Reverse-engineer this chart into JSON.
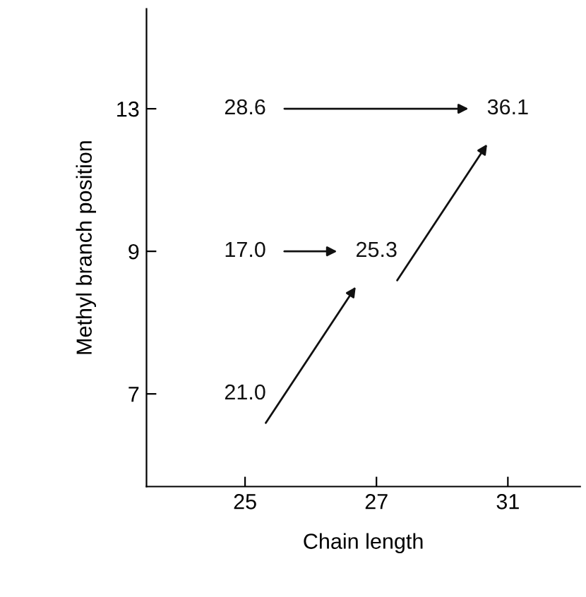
{
  "chart_data": {
    "type": "heatmap",
    "xlabel": "Chain length",
    "ylabel": "Methyl branch position",
    "categories": [
      "25",
      "27",
      "31"
    ],
    "y_categories": [
      "13",
      "9",
      "7"
    ],
    "cells": [
      [
        28.6,
        null,
        36.1
      ],
      [
        17.0,
        25.3,
        null
      ],
      [
        21.0,
        null,
        null
      ]
    ],
    "cell_labels": [
      [
        "28.6",
        null,
        "36.1"
      ],
      [
        "17.0",
        "25.3",
        null
      ],
      [
        "21.0",
        null,
        null
      ]
    ]
  }
}
